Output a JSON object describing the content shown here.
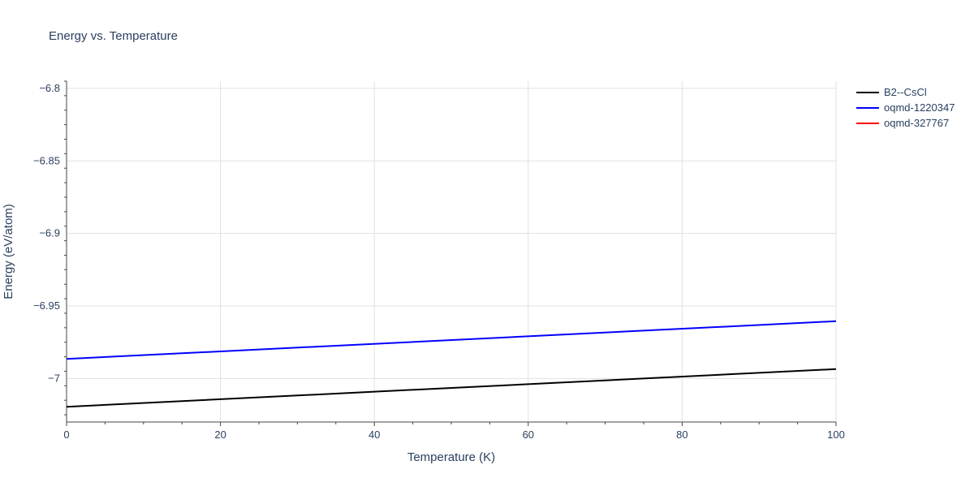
{
  "chart_data": {
    "type": "line",
    "title": "Energy vs. Temperature",
    "xlabel": "Temperature (K)",
    "ylabel": "Energy (eV/atom)",
    "xlim": [
      0,
      100
    ],
    "ylim": [
      -7.03,
      -6.795
    ],
    "x_ticks": [
      0,
      20,
      40,
      60,
      80,
      100
    ],
    "x_tick_labels": [
      "0",
      "20",
      "40",
      "60",
      "80",
      "100"
    ],
    "y_ticks": [
      -7.0,
      -6.95,
      -6.9,
      -6.85,
      -6.8
    ],
    "y_tick_labels": [
      "−7",
      "−6.95",
      "−6.9",
      "−6.85",
      "−6.8"
    ],
    "grid": true,
    "legend_position": "top-right",
    "series": [
      {
        "name": "B2--CsCl",
        "color": "#000000",
        "x": [
          0,
          100
        ],
        "y": [
          -7.0195,
          -6.9935
        ]
      },
      {
        "name": "oqmd-1220347",
        "color": "#0000ff",
        "x": [
          0,
          100
        ],
        "y": [
          -6.9865,
          -6.9605
        ]
      },
      {
        "name": "oqmd-327767",
        "color": "#ff0000",
        "x": [],
        "y": []
      }
    ]
  }
}
